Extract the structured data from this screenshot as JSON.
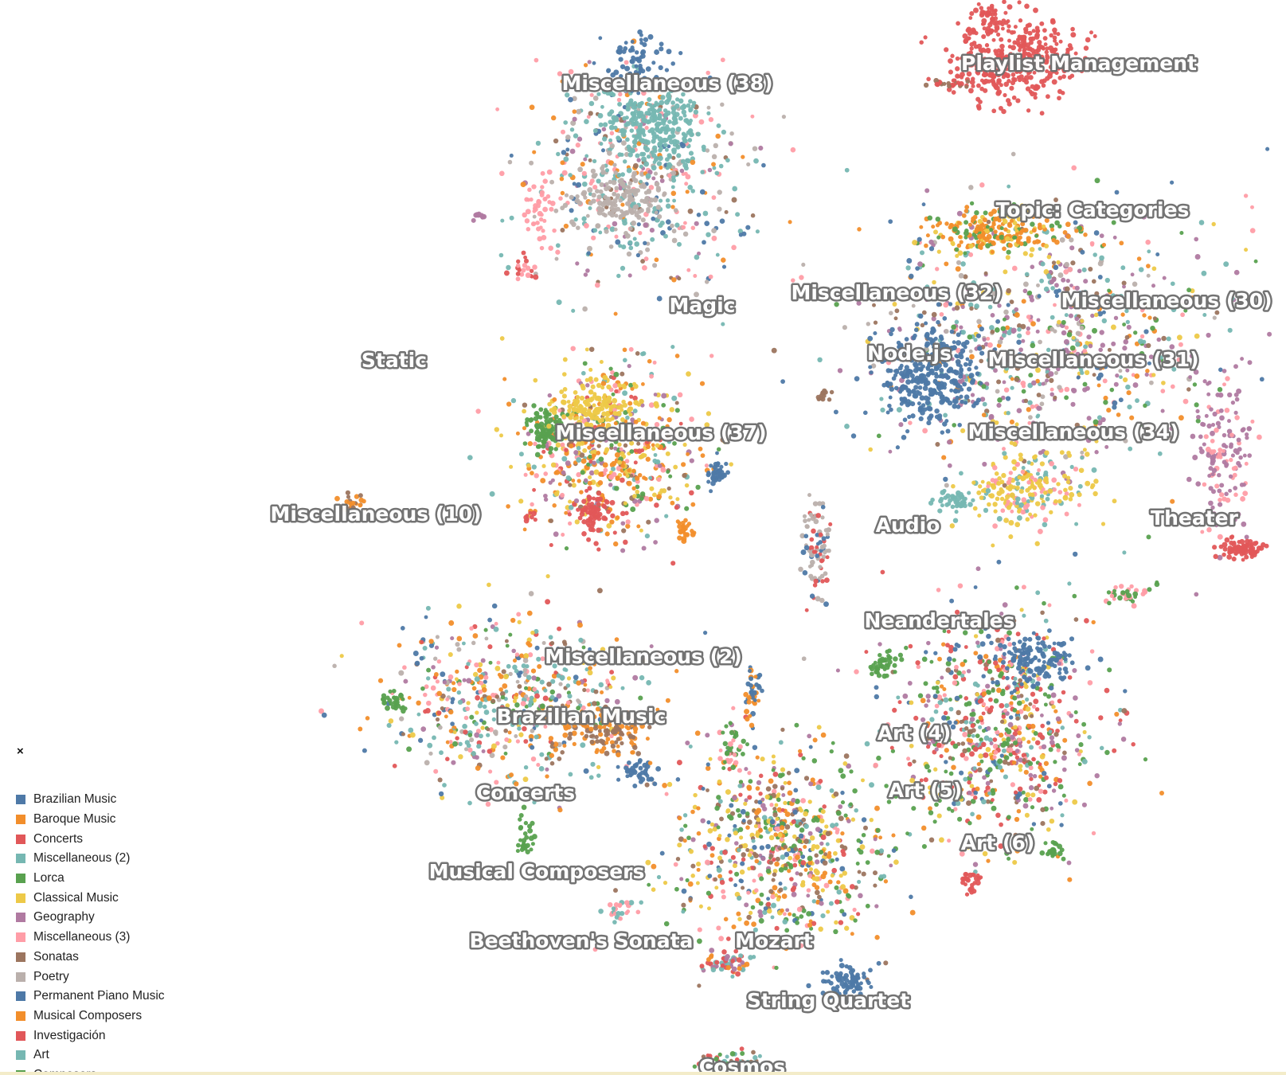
{
  "map": {
    "labels": [
      {
        "text": "Playlist Management",
        "cluster": "Investigación"
      },
      {
        "text": "Miscellaneous (38)",
        "cluster": "Miscellaneous (2)"
      },
      {
        "text": "Magic",
        "cluster": "Poetry"
      },
      {
        "text": "Topic: Categories",
        "cluster": "Musical Composers"
      },
      {
        "text": "Miscellaneous (32)",
        "cluster": "Poetry"
      },
      {
        "text": "Miscellaneous (30)",
        "cluster": "Geography"
      },
      {
        "text": "Node.js",
        "cluster": "Permanent Piano Music"
      },
      {
        "text": "Miscellaneous (31)",
        "cluster": "Geography"
      },
      {
        "text": "Static",
        "cluster": ""
      },
      {
        "text": "Miscellaneous (37)",
        "cluster": "Baroque Music"
      },
      {
        "text": "Miscellaneous (34)",
        "cluster": "Classical Music"
      },
      {
        "text": "Miscellaneous (10)",
        "cluster": "Sonatas"
      },
      {
        "text": "Audio",
        "cluster": "Art"
      },
      {
        "text": "Theater",
        "cluster": "Concerts"
      },
      {
        "text": "Neandertales",
        "cluster": "Concerts"
      },
      {
        "text": "Miscellaneous (2)",
        "cluster": "Miscellaneous (2)"
      },
      {
        "text": "Brazilian Music",
        "cluster": "Sonatas"
      },
      {
        "text": "Art (4)",
        "cluster": "Lorca"
      },
      {
        "text": "Concerts",
        "cluster": "Concerts"
      },
      {
        "text": "Art (5)",
        "cluster": "Brazilian Music"
      },
      {
        "text": "Art (6)",
        "cluster": "Geography"
      },
      {
        "text": "Musical Composers",
        "cluster": "Lorca"
      },
      {
        "text": "Beethoven's Sonata",
        "cluster": "Art"
      },
      {
        "text": "Mozart",
        "cluster": "Classical Music"
      },
      {
        "text": "String Quartet",
        "cluster": "Brazilian Music"
      },
      {
        "text": "Cosmos",
        "cluster": "Lorca"
      }
    ]
  },
  "legend": {
    "close_label": "×",
    "items": [
      {
        "label": "Brazilian Music",
        "color": "#4e79a7"
      },
      {
        "label": "Baroque Music",
        "color": "#f28e2b"
      },
      {
        "label": "Concerts",
        "color": "#e15759"
      },
      {
        "label": "Miscellaneous (2)",
        "color": "#76b7b2"
      },
      {
        "label": "Lorca",
        "color": "#59a14f"
      },
      {
        "label": "Classical Music",
        "color": "#edc948"
      },
      {
        "label": "Geography",
        "color": "#b07aa1"
      },
      {
        "label": "Miscellaneous (3)",
        "color": "#ff9da7"
      },
      {
        "label": "Sonatas",
        "color": "#9c755f"
      },
      {
        "label": "Poetry",
        "color": "#bab0ac"
      },
      {
        "label": "Permanent Piano Music",
        "color": "#4e79a7"
      },
      {
        "label": "Musical Composers",
        "color": "#f28e2b"
      },
      {
        "label": "Investigación",
        "color": "#e15759"
      },
      {
        "label": "Art",
        "color": "#76b7b2"
      },
      {
        "label": "Composers",
        "color": "#59a14f"
      }
    ]
  }
}
